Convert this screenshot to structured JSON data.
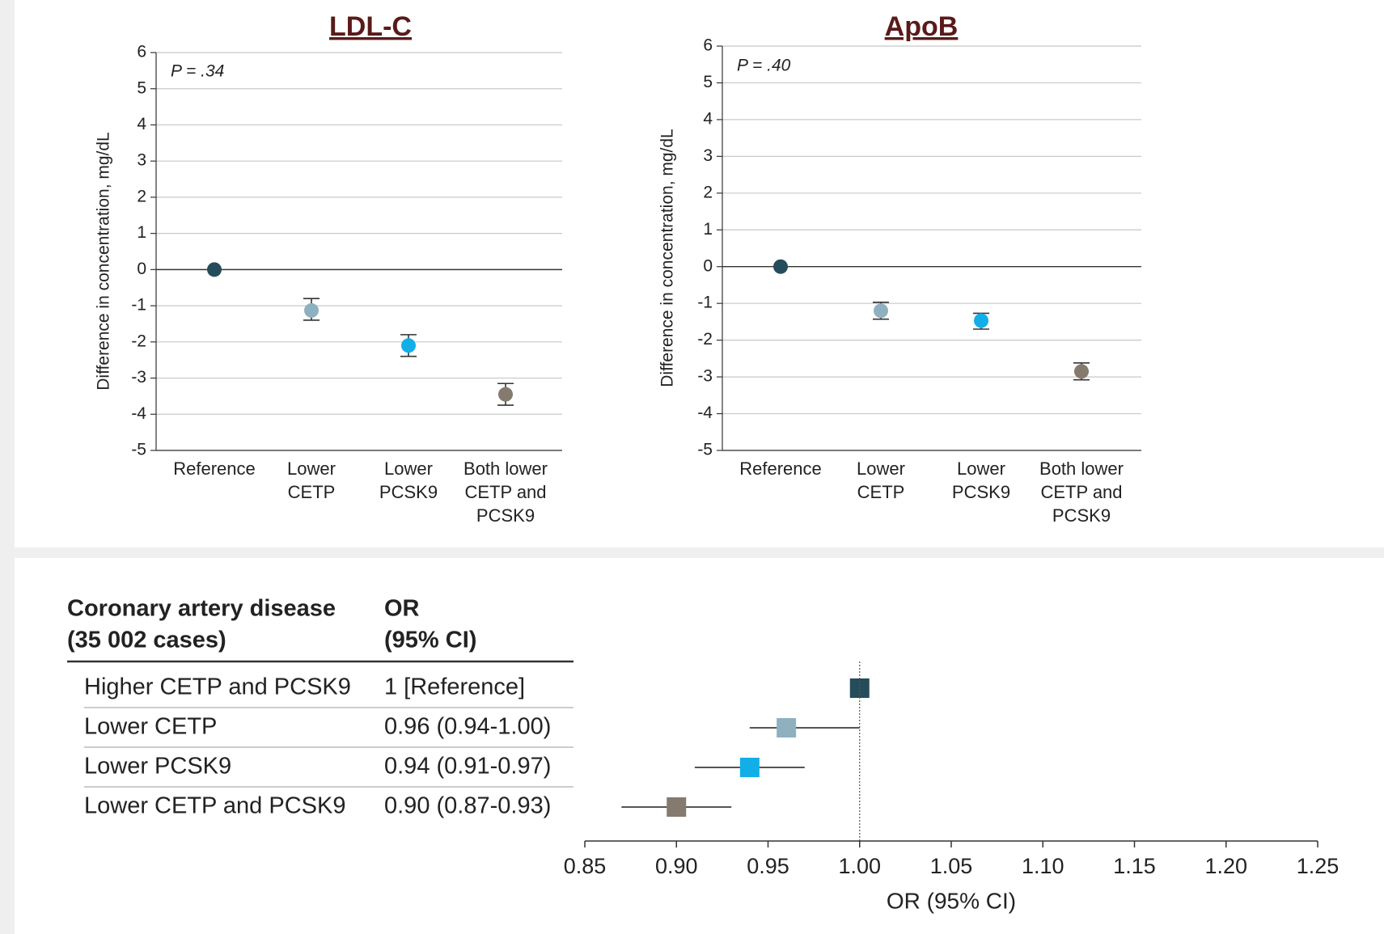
{
  "chart_data": [
    {
      "type": "dotplot",
      "title": "LDL-C",
      "annotation": "P = .34",
      "y_label": "Difference in concentration, mg/dL",
      "categories": [
        "Reference",
        "Lower CETP",
        "Lower PCSK9",
        "Both lower CETP and PCSK9"
      ],
      "values": [
        0,
        -1.13,
        -2.1,
        -3.45
      ],
      "lower": [
        null,
        -1.4,
        -2.4,
        -3.75
      ],
      "upper": [
        null,
        -0.8,
        -1.8,
        -3.15
      ],
      "colors": [
        "#254c5a",
        "#8fb1bf",
        "#12aee8",
        "#857a6e"
      ],
      "ylim": [
        -5,
        6
      ],
      "yticks": [
        -5,
        -4,
        -3,
        -2,
        -1,
        0,
        1,
        2,
        3,
        4,
        5,
        6
      ],
      "grid": true
    },
    {
      "type": "dotplot",
      "title": "ApoB",
      "annotation": "P = .40",
      "y_label": "Difference in concentration, mg/dL",
      "categories": [
        "Reference",
        "Lower CETP",
        "Lower PCSK9",
        "Both lower CETP and PCSK9"
      ],
      "values": [
        0,
        -1.2,
        -1.47,
        -2.85
      ],
      "lower": [
        null,
        -1.43,
        -1.7,
        -3.08
      ],
      "upper": [
        null,
        -0.97,
        -1.27,
        -2.62
      ],
      "colors": [
        "#254c5a",
        "#8fb1bf",
        "#12aee8",
        "#857a6e"
      ],
      "ylim": [
        -5,
        6
      ],
      "yticks": [
        -5,
        -4,
        -3,
        -2,
        -1,
        0,
        1,
        2,
        3,
        4,
        5,
        6
      ],
      "grid": true
    },
    {
      "type": "forest",
      "column_headers": [
        [
          "Coronary artery disease",
          "(35 002 cases)"
        ],
        [
          "OR",
          "(95% CI)"
        ]
      ],
      "categories": [
        "Higher CETP and PCSK9",
        "Lower CETP",
        "Lower PCSK9",
        "Lower CETP and PCSK9"
      ],
      "values": [
        1,
        0.96,
        0.94,
        0.9
      ],
      "value_labels": [
        "1 [Reference]",
        "0.96 (0.94-1.00)",
        "0.94 (0.91-0.97)",
        "0.90 (0.87-0.93)"
      ],
      "lower": [
        null,
        0.94,
        0.91,
        0.87
      ],
      "upper": [
        null,
        1.0,
        0.97,
        0.93
      ],
      "colors": [
        "#254c5a",
        "#8fb1bf",
        "#12aee8",
        "#857a6e"
      ],
      "reference_line": 1,
      "x_label": "OR (95% CI)",
      "xlim": [
        0.85,
        1.25
      ],
      "xticks": [
        0.85,
        {
          "value": 0.9,
          "label": "0.90"
        },
        0.95,
        {
          "value": 1.0,
          "label": "1.00"
        },
        1.05,
        {
          "value": 1.1,
          "label": "1.10"
        },
        1.15,
        {
          "value": 1.2,
          "label": "1.20"
        },
        1.25
      ]
    }
  ]
}
